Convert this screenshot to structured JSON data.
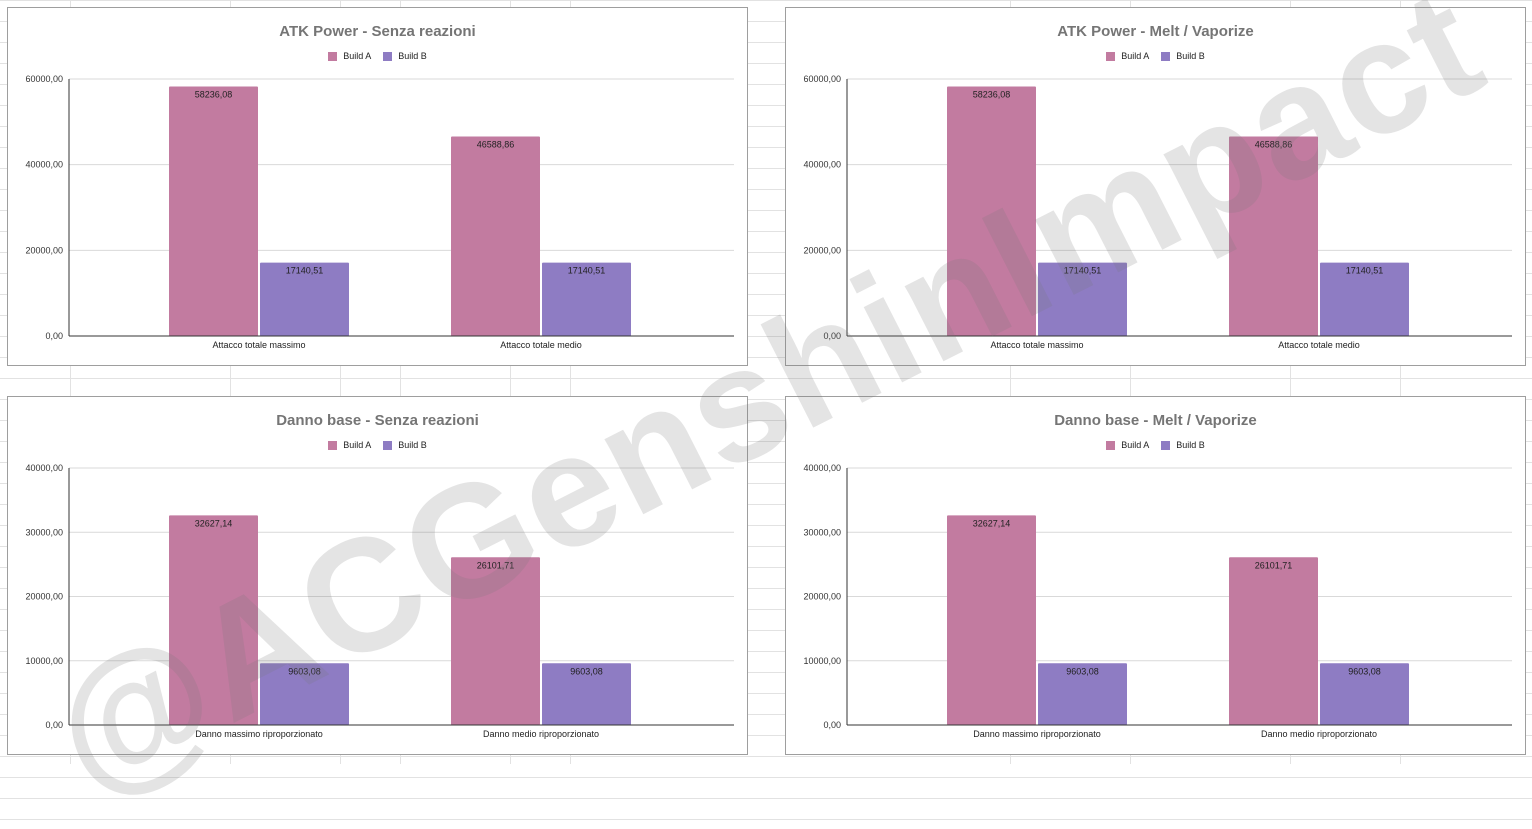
{
  "chart_data": [
    {
      "type": "bar",
      "title": "ATK Power - Senza reazioni",
      "categories": [
        "Attacco totale massimo",
        "Attacco totale medio"
      ],
      "series": [
        {
          "name": "Build A",
          "values": [
            58236.08,
            46588.86
          ],
          "labels": [
            "58236,08",
            "46588,86"
          ]
        },
        {
          "name": "Build B",
          "values": [
            17140.51,
            17140.51
          ],
          "labels": [
            "17140,51",
            "17140,51"
          ]
        }
      ],
      "ylim": [
        0,
        60000
      ],
      "yticks": [
        "0,00",
        "20000,00",
        "40000,00",
        "60000,00"
      ],
      "grid": true,
      "legend": "top"
    },
    {
      "type": "bar",
      "title": "ATK Power - Melt / Vaporize",
      "categories": [
        "Attacco totale massimo",
        "Attacco totale medio"
      ],
      "series": [
        {
          "name": "Build A",
          "values": [
            58236.08,
            46588.86
          ],
          "labels": [
            "58236,08",
            "46588,86"
          ]
        },
        {
          "name": "Build B",
          "values": [
            17140.51,
            17140.51
          ],
          "labels": [
            "17140,51",
            "17140,51"
          ]
        }
      ],
      "ylim": [
        0,
        60000
      ],
      "yticks": [
        "0,00",
        "20000,00",
        "40000,00",
        "60000,00"
      ],
      "grid": true,
      "legend": "top"
    },
    {
      "type": "bar",
      "title": "Danno base - Senza reazioni",
      "categories": [
        "Danno massimo riproporzionato",
        "Danno medio riproporzionato"
      ],
      "series": [
        {
          "name": "Build A",
          "values": [
            32627.14,
            26101.71
          ],
          "labels": [
            "32627,14",
            "26101,71"
          ]
        },
        {
          "name": "Build B",
          "values": [
            9603.08,
            9603.08
          ],
          "labels": [
            "9603,08",
            "9603,08"
          ]
        }
      ],
      "ylim": [
        0,
        40000
      ],
      "yticks": [
        "0,00",
        "10000,00",
        "20000,00",
        "30000,00",
        "40000,00"
      ],
      "grid": true,
      "legend": "top"
    },
    {
      "type": "bar",
      "title": "Danno base - Melt / Vaporize",
      "categories": [
        "Danno massimo riproporzionato",
        "Danno medio riproporzionato"
      ],
      "series": [
        {
          "name": "Build A",
          "values": [
            32627.14,
            26101.71
          ],
          "labels": [
            "32627,14",
            "26101,71"
          ]
        },
        {
          "name": "Build B",
          "values": [
            9603.08,
            9603.08
          ],
          "labels": [
            "9603,08",
            "9603,08"
          ]
        }
      ],
      "ylim": [
        0,
        40000
      ],
      "yticks": [
        "0,00",
        "10000,00",
        "20000,00",
        "30000,00",
        "40000,00"
      ],
      "grid": true,
      "legend": "top"
    }
  ],
  "colors": {
    "Build A": "#c27ba0",
    "Build B": "#8e7cc3"
  },
  "watermark": "@ACGenshinImpact"
}
